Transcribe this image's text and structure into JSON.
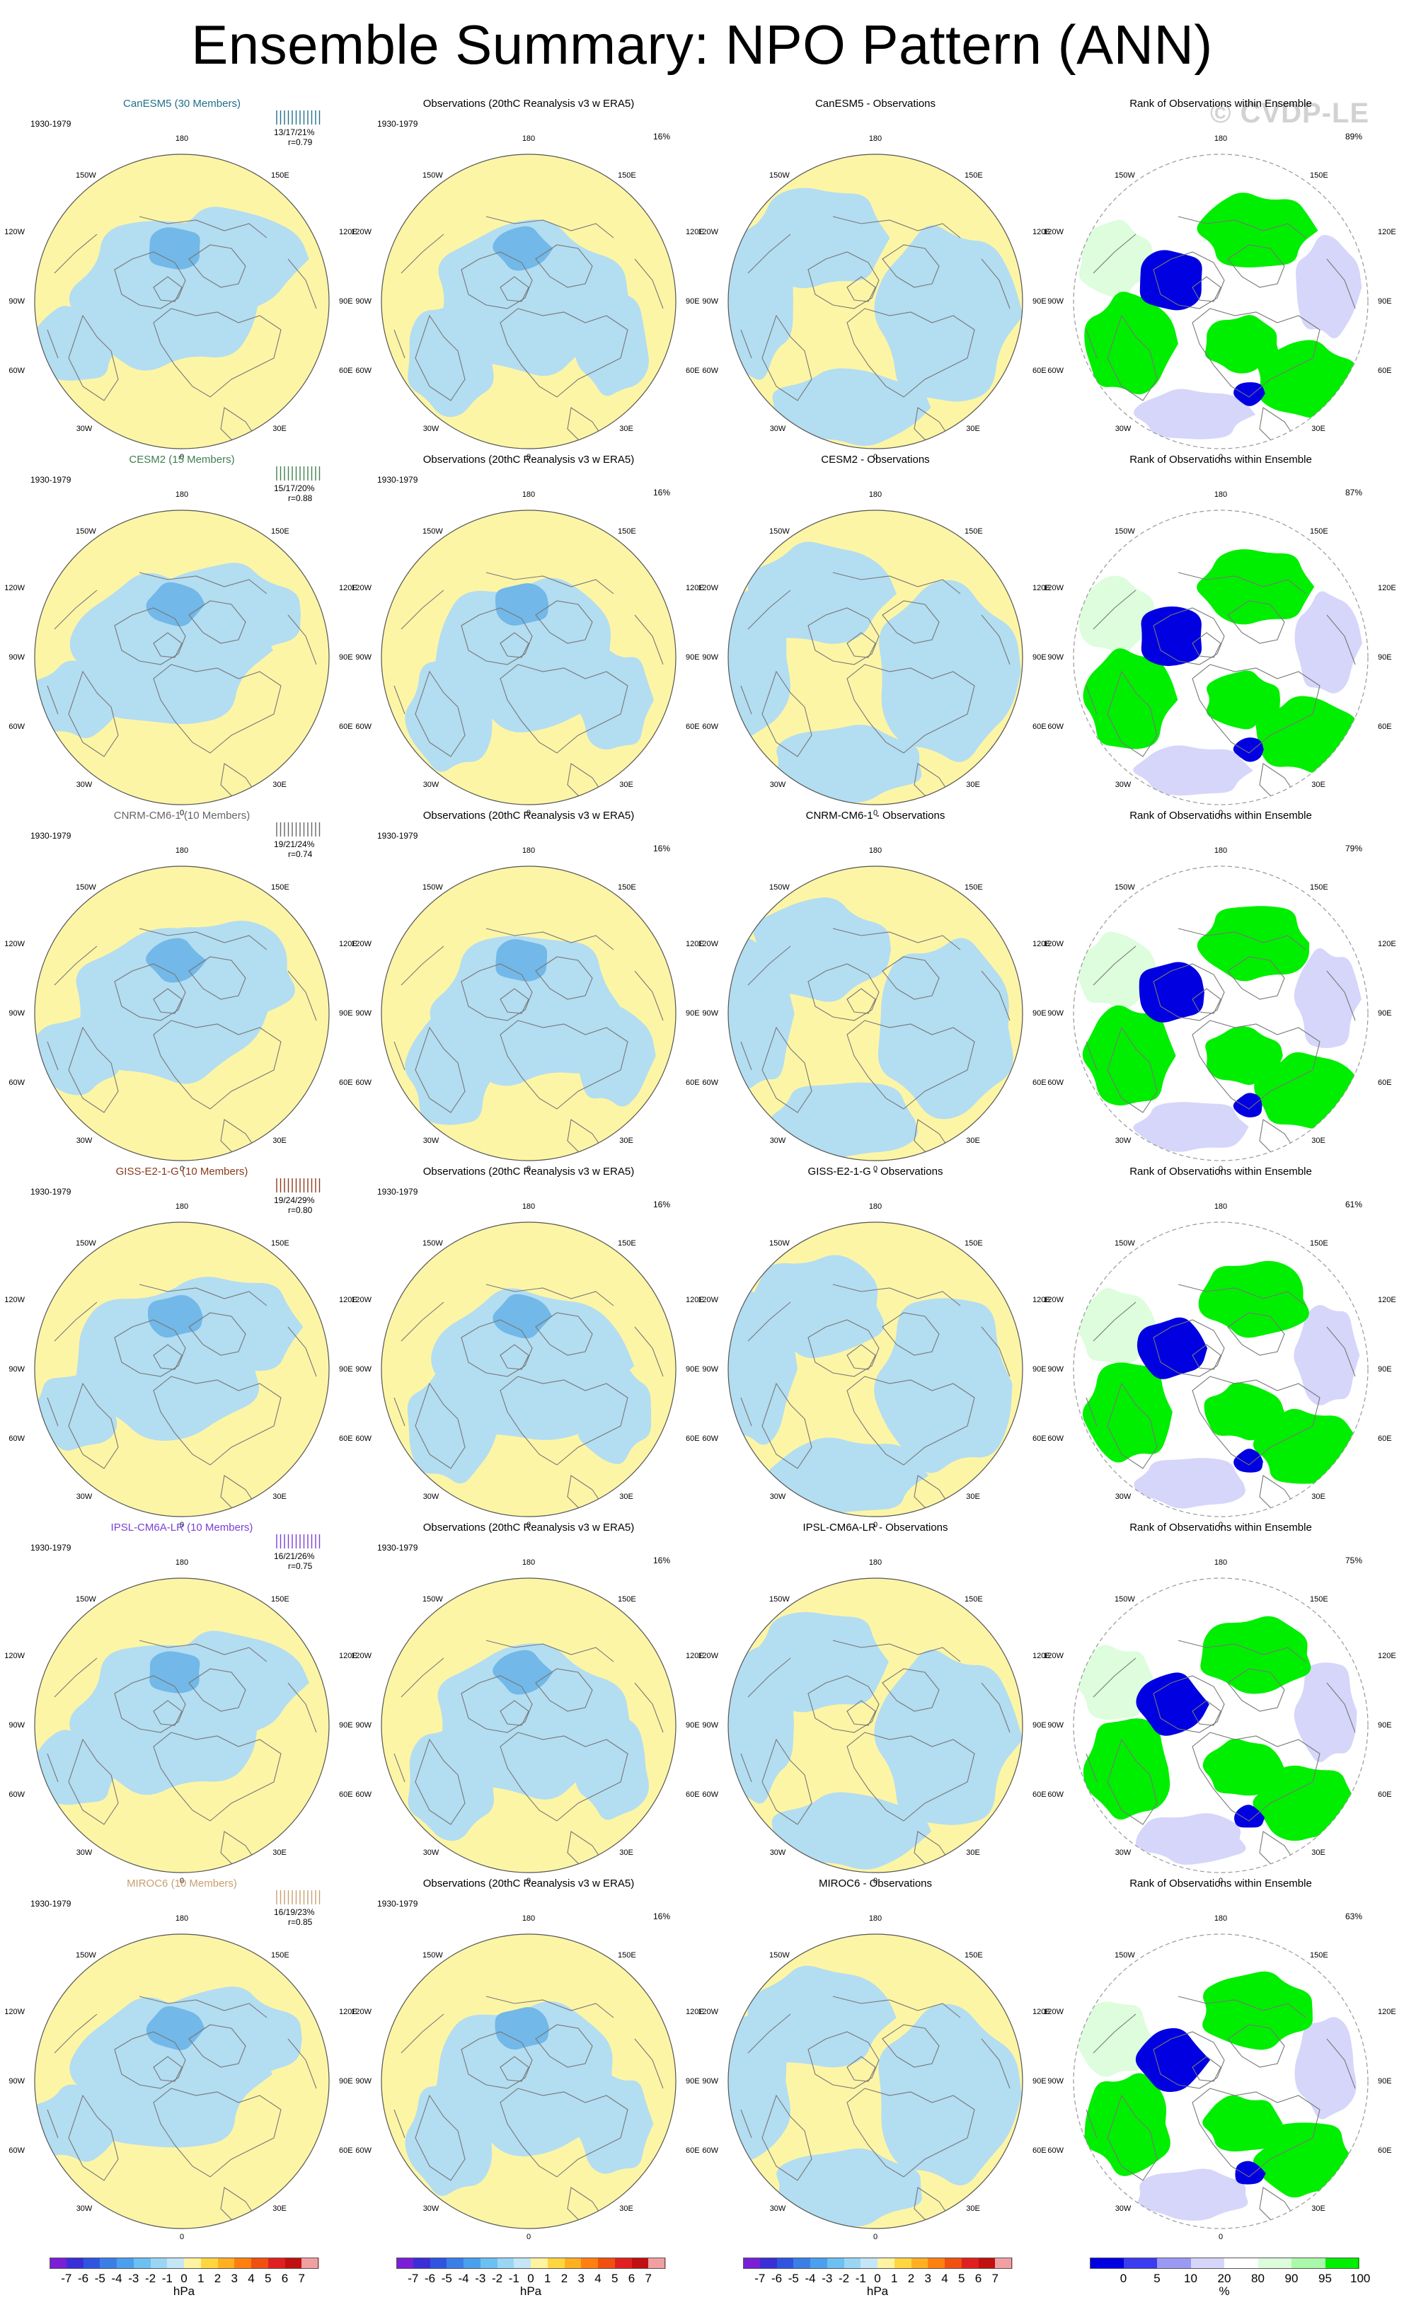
{
  "title": "Ensemble Summary: NPO Pattern (ANN)",
  "watermark": "© CVDP-LE",
  "period": "1930-1979",
  "obs_title": "Observations (20thC Reanalysis v3 w ERA5)",
  "obs_pct": "16%",
  "rank_title": "Rank of Observations within Ensemble",
  "lon_labels": [
    "180",
    "150W",
    "150E",
    "120W",
    "120E",
    "90W",
    "90E",
    "60W",
    "60E",
    "30W",
    "30E",
    "0"
  ],
  "rows": [
    {
      "model": "CanESM5 (30 Members)",
      "model_color": "#1f6f8b",
      "stats": "13/17/21%",
      "r": "r=0.79",
      "diff": "CanESM5 - Observations",
      "rank_pct": "89%"
    },
    {
      "model": "CESM2 (15 Members)",
      "model_color": "#3f7f4f",
      "stats": "15/17/20%",
      "r": "r=0.88",
      "diff": "CESM2 - Observations",
      "rank_pct": "87%"
    },
    {
      "model": "CNRM-CM6-1 (10 Members)",
      "model_color": "#666666",
      "stats": "19/21/24%",
      "r": "r=0.74",
      "diff": "CNRM-CM6-1 - Observations",
      "rank_pct": "79%"
    },
    {
      "model": "GISS-E2-1-G (10 Members)",
      "model_color": "#8b3a1a",
      "stats": "19/24/29%",
      "r": "r=0.80",
      "diff": "GISS-E2-1-G - Observations",
      "rank_pct": "61%"
    },
    {
      "model": "IPSL-CM6A-LR (10 Members)",
      "model_color": "#7a3fd6",
      "stats": "16/21/26%",
      "r": "r=0.75",
      "diff": "IPSL-CM6A-LR - Observations",
      "rank_pct": "75%"
    },
    {
      "model": "MIROC6 (10 Members)",
      "model_color": "#c8a070",
      "stats": "16/19/23%",
      "r": "r=0.85",
      "diff": "MIROC6 - Observations",
      "rank_pct": "63%"
    }
  ],
  "colorbar_hpa": {
    "labels": [
      "-7",
      "-6",
      "-5",
      "-4",
      "-3",
      "-2",
      "-1",
      "0",
      "1",
      "2",
      "3",
      "4",
      "5",
      "6",
      "7"
    ],
    "unit": "hPa",
    "colors": [
      "#7a1fd6",
      "#3a2fd6",
      "#2f55e0",
      "#3b7fe6",
      "#4aa0ee",
      "#6cc0f2",
      "#9ad6f4",
      "#c4e6f6",
      "#fdf3a0",
      "#ffd640",
      "#ffb020",
      "#ff8010",
      "#f05010",
      "#e02020",
      "#c01010",
      "#f0a0a0"
    ]
  },
  "colorbar_pct": {
    "labels": [
      "0",
      "5",
      "10",
      "20",
      "80",
      "90",
      "95",
      "100"
    ],
    "unit": "%",
    "colors": [
      "#0000e0",
      "#3b3bf0",
      "#9a9af5",
      "#d6d6fb",
      "#ffffff",
      "#dcfcdc",
      "#aaf8aa",
      "#00ee00"
    ]
  },
  "colors": {
    "pos": "#fdf5a6",
    "neg": "#b3ddf1",
    "neg2": "#72b8e8",
    "rank_hi": "#00ee00",
    "rank_lo": "#0000e0",
    "rank_lo_light": "#d6d6fb",
    "rank_hi_light": "#ddfddd"
  }
}
